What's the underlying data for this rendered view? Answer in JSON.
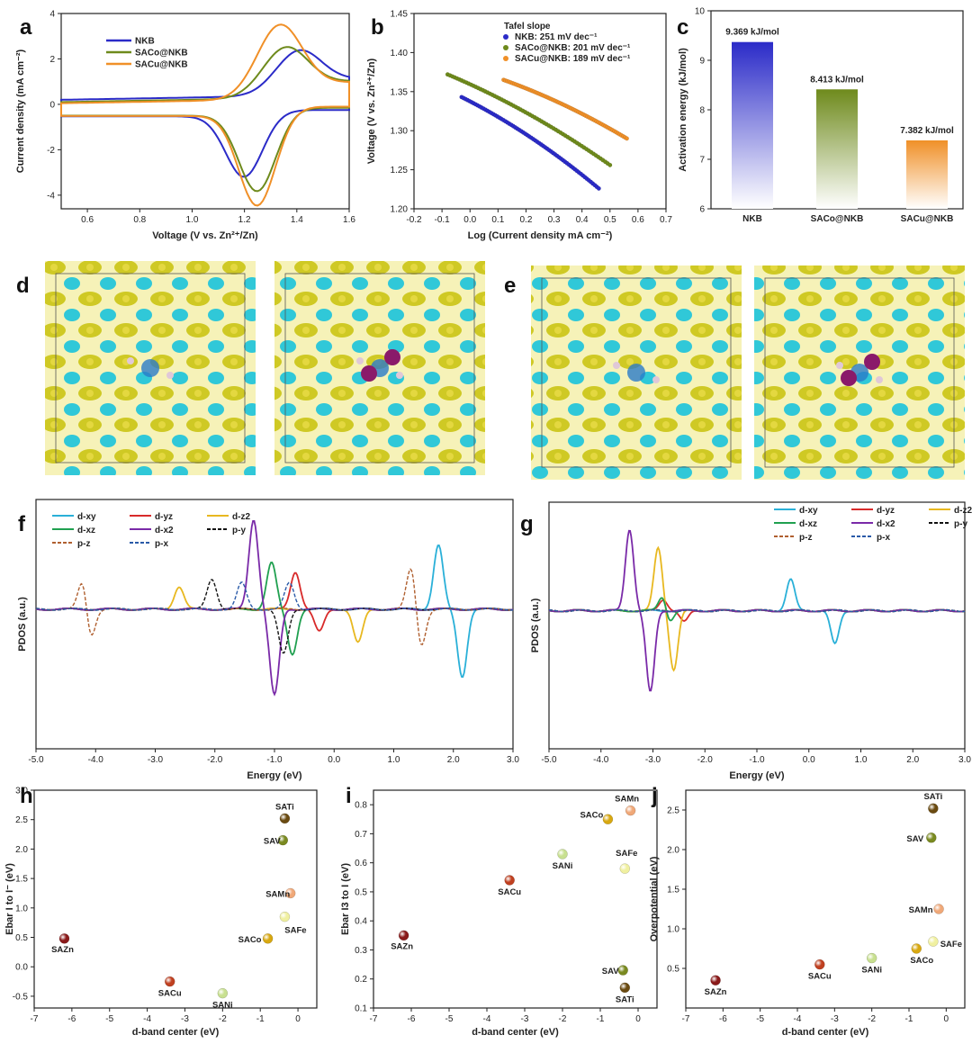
{
  "colors": {
    "NKB": "#2b2bc8",
    "SACo@NKB": "#6e8a1c",
    "SACu@NKB": "#f09028",
    "d-xy": "#2ab0d8",
    "d-yz": "#d82a2a",
    "d-z2": "#e8b820",
    "d-xz": "#20a050",
    "d-x2": "#7a2aa8",
    "p-y": "#111111",
    "p-z": "#b06030",
    "p-x": "#2a5aa8",
    "isosurface_yellow": "#c8c20a",
    "isosurface_cyan": "#30c8d8"
  },
  "chart_data": [
    {
      "panel": "a",
      "type": "line",
      "xlabel": "Voltage (V vs. Zn²⁺/Zn)",
      "ylabel": "Current density (mA cm⁻²)",
      "xlim": [
        0.5,
        1.6
      ],
      "ylim": [
        -4.6,
        4
      ],
      "xticks": [
        "0.6",
        "0.8",
        "1.0",
        "1.2",
        "1.4",
        "1.6"
      ],
      "yticks": [
        "-4",
        "-2",
        "0",
        "2",
        "4"
      ],
      "legend_position": "top-left",
      "series": [
        {
          "name": "NKB",
          "peak_anodic": [
            1.4,
            2.3
          ],
          "peak_cathodic": [
            1.2,
            -2.8
          ],
          "baseline_upper": 0.2,
          "baseline_lower": -0.25
        },
        {
          "name": "SACo@NKB",
          "peak_anodic": [
            1.35,
            2.55
          ],
          "peak_cathodic": [
            1.25,
            -3.5
          ],
          "baseline_upper": 0.1,
          "baseline_lower": -0.15
        },
        {
          "name": "SACu@NKB",
          "peak_anodic": [
            1.33,
            3.6
          ],
          "peak_cathodic": [
            1.25,
            -4.15
          ],
          "baseline_upper": 0.05,
          "baseline_lower": -0.1
        }
      ]
    },
    {
      "panel": "b",
      "type": "scatter",
      "xlabel": "Log (Current density mA cm⁻²)",
      "ylabel": "Voltage (V vs. Zn²⁺/Zn)",
      "xlim": [
        -0.2,
        0.7
      ],
      "ylim": [
        1.2,
        1.45
      ],
      "xticks": [
        "-0.2",
        "-0.1",
        "0.0",
        "0.1",
        "0.2",
        "0.3",
        "0.4",
        "0.5",
        "0.6",
        "0.7"
      ],
      "yticks": [
        "1.20",
        "1.25",
        "1.30",
        "1.35",
        "1.40",
        "1.45"
      ],
      "legend_title": "Tafel slope",
      "series": [
        {
          "name": "NKB: 251 mV dec⁻¹",
          "x_range": [
            -0.03,
            0.46
          ],
          "y_range": [
            1.343,
            1.226
          ]
        },
        {
          "name": "SACo@NKB: 201 mV dec⁻¹",
          "x_range": [
            -0.08,
            0.5
          ],
          "y_range": [
            1.372,
            1.256
          ]
        },
        {
          "name": "SACu@NKB: 189 mV dec⁻¹",
          "x_range": [
            0.12,
            0.56
          ],
          "y_range": [
            1.365,
            1.29
          ]
        }
      ]
    },
    {
      "panel": "c",
      "type": "bar",
      "ylabel": "Activation energy (kJ/mol)",
      "ylim": [
        6,
        10
      ],
      "yticks": [
        "6",
        "7",
        "8",
        "9",
        "10"
      ],
      "categories": [
        "NKB",
        "SACo@NKB",
        "SACu@NKB"
      ],
      "values": [
        9.369,
        8.413,
        7.382
      ],
      "data_labels": [
        "9.369 kJ/mol",
        "8.413 kJ/mol",
        "7.382 kJ/mol"
      ]
    },
    {
      "panel": "f",
      "type": "line",
      "xlabel": "Energy (eV)",
      "ylabel": "PDOS (a.u.)",
      "xlim": [
        -5,
        3
      ],
      "xticks": [
        "-5.0",
        "-4.0",
        "-3.0",
        "-2.0",
        "-1.0",
        "0.0",
        "1.0",
        "2.0",
        "3.0"
      ],
      "legend_position": "top-left",
      "series": [
        {
          "name": "d-xy",
          "peaks": [
            [
              1.75,
              0.85
            ],
            [
              2.15,
              -0.9
            ]
          ]
        },
        {
          "name": "d-yz",
          "peaks": [
            [
              -0.65,
              0.5
            ],
            [
              -0.25,
              -0.3
            ]
          ]
        },
        {
          "name": "d-z2",
          "peaks": [
            [
              0.4,
              -0.45
            ],
            [
              -2.6,
              0.3
            ]
          ]
        },
        {
          "name": "d-xz",
          "peaks": [
            [
              -1.05,
              0.62
            ],
            [
              -0.7,
              -0.6
            ]
          ]
        },
        {
          "name": "d-x2",
          "peaks": [
            [
              -1.35,
              1.2
            ],
            [
              -1.0,
              -1.15
            ]
          ]
        },
        {
          "name": "p-y",
          "peaks": [
            [
              -2.05,
              0.4
            ],
            [
              -0.85,
              -0.6
            ]
          ]
        },
        {
          "name": "p-z",
          "peaks": [
            [
              -4.2,
              0.5
            ],
            [
              -4.1,
              -0.5
            ],
            [
              1.3,
              0.6
            ],
            [
              1.45,
              -0.55
            ]
          ]
        },
        {
          "name": "p-x",
          "peaks": [
            [
              -1.55,
              0.35
            ],
            [
              -0.75,
              0.35
            ]
          ]
        }
      ]
    },
    {
      "panel": "g",
      "type": "line",
      "xlabel": "Energy (eV)",
      "ylabel": "PDOS (a.u.)",
      "xlim": [
        -5,
        3
      ],
      "xticks": [
        "-5.0",
        "-4.0",
        "-3.0",
        "-2.0",
        "-1.0",
        "0.0",
        "1.0",
        "2.0",
        "3.0"
      ],
      "legend_position": "top-right",
      "series": [
        {
          "name": "d-xy",
          "peaks": [
            [
              -0.35,
              0.42
            ],
            [
              0.5,
              -0.45
            ]
          ]
        },
        {
          "name": "d-yz",
          "peaks": [
            [
              -2.8,
              0.15
            ],
            [
              -2.4,
              -0.15
            ]
          ]
        },
        {
          "name": "d-z2",
          "peaks": [
            [
              -2.9,
              0.85
            ],
            [
              -2.6,
              -0.8
            ]
          ]
        },
        {
          "name": "d-xz",
          "peaks": [
            [
              -2.8,
              0.25
            ],
            [
              -2.7,
              -0.2
            ]
          ]
        },
        {
          "name": "d-x2",
          "peaks": [
            [
              -3.45,
              1.1
            ],
            [
              -3.05,
              -1.1
            ]
          ]
        },
        {
          "name": "p-y",
          "peaks": [
            [
              -0.25,
              0.6
            ],
            [
              -0.25,
              -0.6
            ]
          ]
        },
        {
          "name": "p-z",
          "peaks": [
            [
              -3.7,
              0.4
            ],
            [
              -3.7,
              -0.4
            ],
            [
              1.75,
              0.55
            ],
            [
              1.75,
              -0.55
            ]
          ]
        },
        {
          "name": "p-x",
          "peaks": [
            [
              -1.7,
              0.6
            ],
            [
              -1.7,
              -0.6
            ],
            [
              -1.0,
              0.65
            ],
            [
              -1.0,
              -0.65
            ]
          ]
        }
      ]
    },
    {
      "panel": "h",
      "type": "scatter",
      "xlabel": "d-band center (eV)",
      "ylabel": "Ebar I to I⁻ (eV)",
      "xlim": [
        -7,
        0.5
      ],
      "ylim": [
        -0.7,
        3.0
      ],
      "xticks": [
        "-7",
        "-6",
        "-5",
        "-4",
        "-3",
        "-2",
        "-1",
        "0"
      ],
      "yticks": [
        "-0.5",
        "0.0",
        "0.5",
        "1.0",
        "1.5",
        "2.0",
        "2.5",
        "3.0"
      ],
      "points": [
        {
          "label": "SAZn",
          "x": -6.2,
          "y": 0.48,
          "color": "#8a1a1a"
        },
        {
          "label": "SACu",
          "x": -3.4,
          "y": -0.25,
          "color": "#c04020"
        },
        {
          "label": "SANi",
          "x": -2.0,
          "y": -0.45,
          "color": "#c8e090"
        },
        {
          "label": "SACo",
          "x": -0.8,
          "y": 0.48,
          "color": "#d8a810"
        },
        {
          "label": "SAFe",
          "x": -0.35,
          "y": 0.85,
          "color": "#f0f0a0"
        },
        {
          "label": "SAMn",
          "x": -0.2,
          "y": 1.25,
          "color": "#f0a878"
        },
        {
          "label": "SAV",
          "x": -0.4,
          "y": 2.15,
          "color": "#7a8a20"
        },
        {
          "label": "SATi",
          "x": -0.35,
          "y": 2.52,
          "color": "#6a4a10"
        }
      ]
    },
    {
      "panel": "i",
      "type": "scatter",
      "xlabel": "d-band center (eV)",
      "ylabel": "Ebar I3 to I (eV)",
      "xlim": [
        -7,
        0.5
      ],
      "ylim": [
        0.1,
        0.85
      ],
      "xticks": [
        "-7",
        "-6",
        "-5",
        "-4",
        "-3",
        "-2",
        "-1",
        "0"
      ],
      "yticks": [
        "0.1",
        "0.2",
        "0.3",
        "0.4",
        "0.5",
        "0.6",
        "0.7",
        "0.8"
      ],
      "points": [
        {
          "label": "SAZn",
          "x": -6.2,
          "y": 0.35,
          "color": "#8a1a1a"
        },
        {
          "label": "SACu",
          "x": -3.4,
          "y": 0.54,
          "color": "#c04020"
        },
        {
          "label": "SANi",
          "x": -2.0,
          "y": 0.63,
          "color": "#c8e090"
        },
        {
          "label": "SACo",
          "x": -0.8,
          "y": 0.75,
          "color": "#d8a810"
        },
        {
          "label": "SAFe",
          "x": -0.35,
          "y": 0.58,
          "color": "#f0f0a0"
        },
        {
          "label": "SAMn",
          "x": -0.2,
          "y": 0.78,
          "color": "#f0a878"
        },
        {
          "label": "SAV",
          "x": -0.4,
          "y": 0.23,
          "color": "#7a8a20"
        },
        {
          "label": "SATi",
          "x": -0.35,
          "y": 0.17,
          "color": "#6a4a10"
        }
      ]
    },
    {
      "panel": "j",
      "type": "scatter",
      "xlabel": "d-band center (eV)",
      "ylabel": "Overpotential (eV)",
      "xlim": [
        -7,
        0.5
      ],
      "ylim": [
        0.0,
        2.75
      ],
      "xticks": [
        "-7",
        "-6",
        "-5",
        "-4",
        "-3",
        "-2",
        "-1",
        "0"
      ],
      "yticks": [
        "0.5",
        "1.0",
        "1.5",
        "2.0",
        "2.5"
      ],
      "points": [
        {
          "label": "SAZn",
          "x": -6.2,
          "y": 0.35,
          "color": "#8a1a1a"
        },
        {
          "label": "SACu",
          "x": -3.4,
          "y": 0.55,
          "color": "#c04020"
        },
        {
          "label": "SANi",
          "x": -2.0,
          "y": 0.63,
          "color": "#c8e090"
        },
        {
          "label": "SACo",
          "x": -0.8,
          "y": 0.75,
          "color": "#d8a810"
        },
        {
          "label": "SAFe",
          "x": -0.35,
          "y": 0.84,
          "color": "#f0f0a0"
        },
        {
          "label": "SAMn",
          "x": -0.2,
          "y": 1.25,
          "color": "#f0a878"
        },
        {
          "label": "SAV",
          "x": -0.4,
          "y": 2.15,
          "color": "#7a8a20"
        },
        {
          "label": "SATi",
          "x": -0.35,
          "y": 2.52,
          "color": "#6a4a10"
        }
      ]
    }
  ],
  "panel_labels": {
    "a": "a",
    "b": "b",
    "c": "c",
    "d": "d",
    "e": "e",
    "f": "f",
    "g": "g",
    "h": "h",
    "i": "i",
    "j": "j"
  }
}
